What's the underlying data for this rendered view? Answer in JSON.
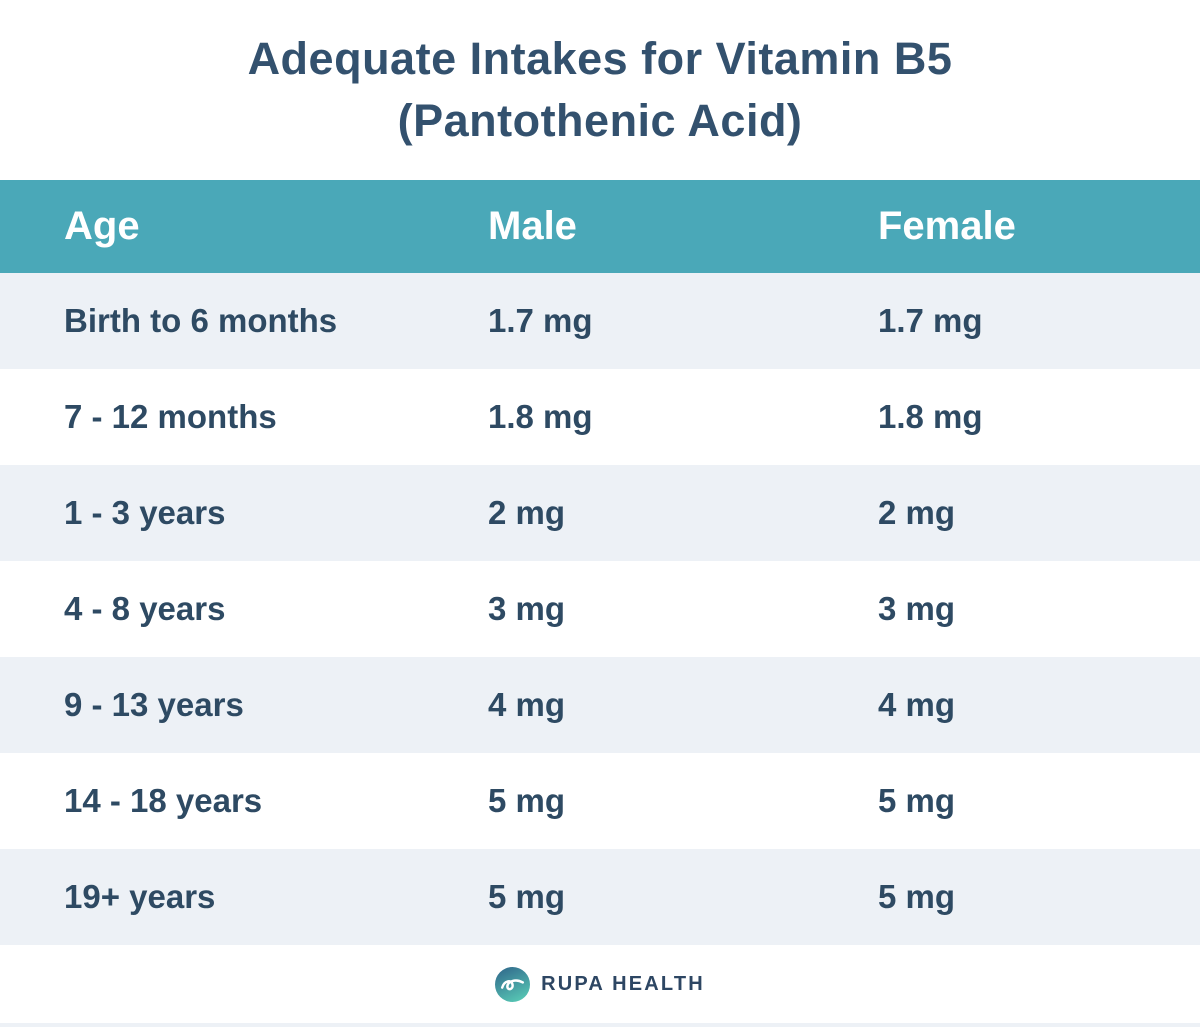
{
  "title": {
    "line1": "Adequate Intakes for Vitamin B5",
    "line2": "(Pantothenic Acid)"
  },
  "table": {
    "columns": [
      "Age",
      "Male",
      "Female"
    ],
    "rows": [
      {
        "age": "Birth to 6 months",
        "male": "1.7 mg",
        "female": "1.7 mg"
      },
      {
        "age": "7 - 12 months",
        "male": "1.8 mg",
        "female": "1.8 mg"
      },
      {
        "age": "1 - 3 years",
        "male": "2 mg",
        "female": "2 mg"
      },
      {
        "age": "4 - 8 years",
        "male": "3 mg",
        "female": "3 mg"
      },
      {
        "age": "9 - 13 years",
        "male": "4 mg",
        "female": "4 mg"
      },
      {
        "age": "14 - 18 years",
        "male": "5 mg",
        "female": "5 mg"
      },
      {
        "age": "19+ years",
        "male": "5 mg",
        "female": "5 mg"
      }
    ]
  },
  "footer": {
    "logo_text": "RUPA HEALTH"
  },
  "colors": {
    "header_bg": "#4aa8b8",
    "row_alt_bg": "#edf1f6",
    "row_bg": "#ffffff",
    "cell_text": "#2e4a63",
    "title_text": "#33516e",
    "header_text": "#ffffff",
    "logo_text": "#2d4663",
    "logo_gradient_start": "#336f8e",
    "logo_gradient_end": "#57c7b4"
  },
  "chart_data": {
    "type": "table",
    "title": "Adequate Intakes for Vitamin B5 (Pantothenic Acid)",
    "columns": [
      "Age",
      "Male",
      "Female"
    ],
    "rows": [
      [
        "Birth to 6 months",
        "1.7 mg",
        "1.7 mg"
      ],
      [
        "7 - 12 months",
        "1.8 mg",
        "1.8 mg"
      ],
      [
        "1 - 3 years",
        "2 mg",
        "2 mg"
      ],
      [
        "4 - 8 years",
        "3 mg",
        "3 mg"
      ],
      [
        "9 - 13 years",
        "4 mg",
        "4 mg"
      ],
      [
        "14 - 18 years",
        "5 mg",
        "5 mg"
      ],
      [
        "19+ years",
        "5 mg",
        "5 mg"
      ]
    ]
  }
}
